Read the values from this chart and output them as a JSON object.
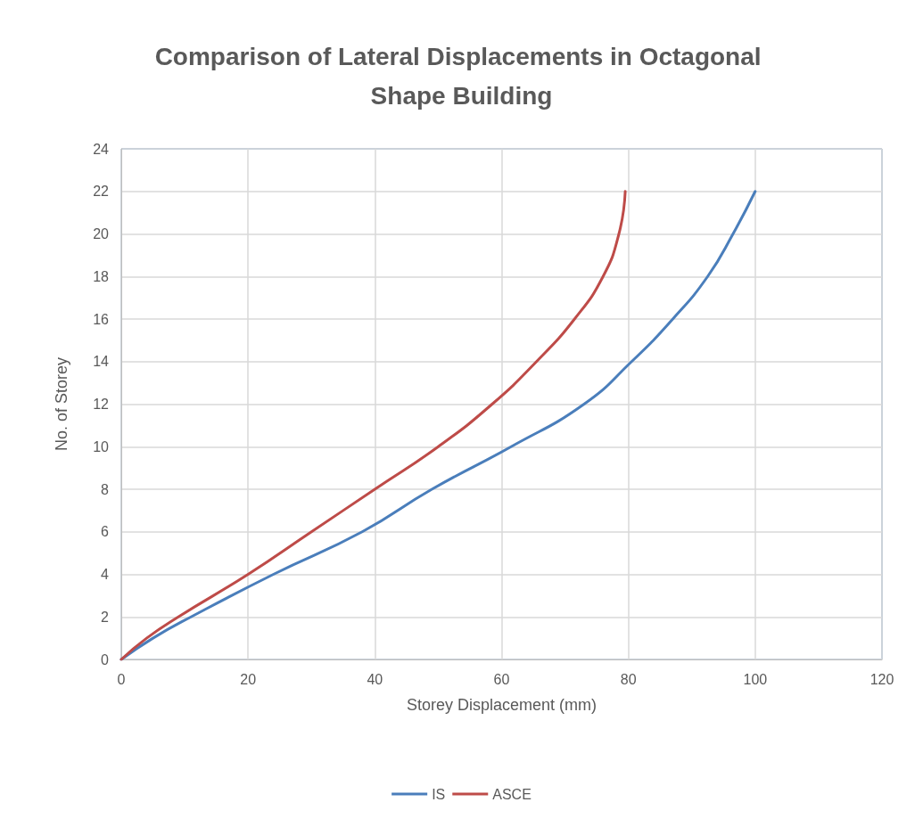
{
  "chart_data": {
    "type": "line",
    "title": "Comparison of Lateral Displacements in Octagonal Shape Building",
    "xlabel": "Storey Displacement (mm)",
    "ylabel": "No. of Storey",
    "xlim": [
      0,
      120
    ],
    "xticks": [
      0,
      20,
      40,
      60,
      80,
      100,
      120
    ],
    "ylim": [
      0,
      24
    ],
    "yticks": [
      0,
      2,
      4,
      6,
      8,
      10,
      12,
      14,
      16,
      18,
      20,
      22,
      24
    ],
    "grid": true,
    "legend": "bottom",
    "marker": "none",
    "line_style": "solid",
    "series": [
      {
        "name": "IS",
        "color": "#4a7ebb",
        "x": [
          0,
          5,
          11,
          24,
          38,
          49,
          61.5,
          73,
          80.5,
          87,
          92.5,
          96.5,
          100
        ],
        "values": [
          0,
          1,
          2,
          4,
          6,
          8,
          10,
          12,
          14,
          16,
          18,
          20,
          22
        ]
      },
      {
        "name": "ASCE",
        "color": "#be4b48",
        "x": [
          0,
          4,
          9,
          20,
          30,
          40,
          50,
          58.5,
          65.5,
          71.5,
          76,
          78.5,
          79.5
        ],
        "values": [
          0,
          1,
          2,
          4,
          6,
          8,
          10,
          12,
          14,
          16,
          18,
          20,
          22
        ]
      }
    ]
  }
}
